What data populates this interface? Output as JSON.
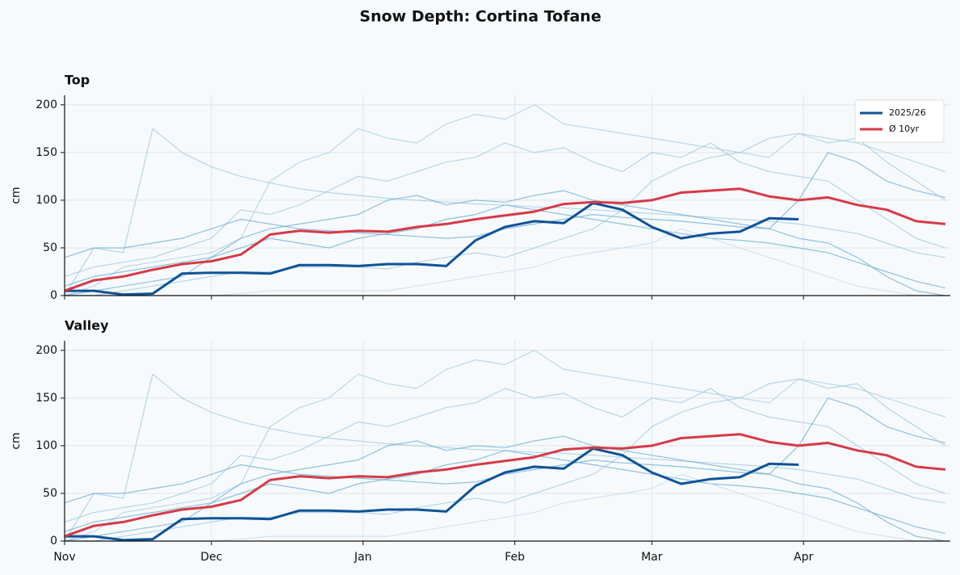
{
  "title": "Snow Depth: Cortina Tofane",
  "chart_data": [
    {
      "type": "line",
      "title": "Top",
      "ylabel": "cm",
      "xlim": [
        0,
        181
      ],
      "ylim": [
        0,
        210
      ],
      "yticks": [
        0,
        50,
        100,
        150,
        200
      ],
      "xticks": [
        0,
        30,
        61,
        92,
        120,
        151
      ],
      "grid": true,
      "legend": "upper right",
      "x": [
        0,
        6,
        12,
        18,
        24,
        30,
        36,
        42,
        48,
        54,
        60,
        66,
        72,
        78,
        84,
        90,
        96,
        102,
        108,
        114,
        120,
        126,
        132,
        138,
        144,
        150,
        156,
        162,
        168,
        174,
        180
      ],
      "series": [
        {
          "color": "#9ecae1",
          "values": [
            0,
            50,
            45,
            175,
            150,
            135,
            125,
            118,
            112,
            108,
            105,
            102,
            100,
            98,
            96,
            95,
            93,
            92,
            90,
            88,
            86,
            84,
            82,
            80,
            78,
            75,
            70,
            65,
            55,
            45,
            40
          ]
        },
        {
          "color": "#a6cee3",
          "values": [
            0,
            10,
            30,
            35,
            40,
            45,
            60,
            120,
            140,
            150,
            175,
            165,
            160,
            180,
            190,
            185,
            200,
            180,
            175,
            170,
            165,
            160,
            155,
            150,
            145,
            170,
            165,
            160,
            150,
            140,
            130
          ]
        },
        {
          "color": "#9ecae1",
          "values": [
            20,
            30,
            35,
            40,
            50,
            60,
            90,
            85,
            95,
            110,
            125,
            120,
            130,
            140,
            145,
            160,
            150,
            155,
            140,
            130,
            150,
            145,
            160,
            140,
            130,
            125,
            120,
            100,
            80,
            60,
            50
          ]
        },
        {
          "color": "#6baed6",
          "values": [
            0,
            5,
            10,
            15,
            20,
            40,
            60,
            70,
            75,
            80,
            85,
            100,
            105,
            95,
            100,
            98,
            105,
            110,
            100,
            95,
            90,
            85,
            80,
            75,
            70,
            100,
            150,
            140,
            120,
            110,
            103
          ]
        },
        {
          "color": "#6baed6",
          "values": [
            10,
            20,
            25,
            30,
            35,
            40,
            50,
            60,
            55,
            50,
            60,
            65,
            70,
            80,
            85,
            95,
            90,
            85,
            80,
            75,
            70,
            65,
            60,
            58,
            55,
            50,
            45,
            35,
            25,
            15,
            8
          ]
        },
        {
          "color": "#9ecae1",
          "values": [
            0,
            0,
            5,
            10,
            15,
            20,
            25,
            25,
            30,
            30,
            30,
            28,
            35,
            40,
            45,
            40,
            50,
            60,
            70,
            90,
            120,
            135,
            145,
            150,
            165,
            170,
            160,
            165,
            140,
            120,
            100
          ]
        },
        {
          "color": "#c6dbef",
          "values": [
            0,
            0,
            0,
            0,
            0,
            0,
            2,
            5,
            5,
            5,
            5,
            5,
            10,
            15,
            20,
            25,
            30,
            40,
            45,
            50,
            55,
            70,
            60,
            50,
            40,
            30,
            20,
            10,
            5,
            0,
            0
          ]
        },
        {
          "color": "#6baed6",
          "values": [
            40,
            50,
            50,
            55,
            60,
            70,
            80,
            75,
            70,
            68,
            66,
            64,
            62,
            60,
            62,
            70,
            75,
            80,
            85,
            82,
            80,
            78,
            75,
            72,
            70,
            60,
            55,
            40,
            20,
            5,
            0
          ]
        },
        {
          "name": "2025/26",
          "color": "#0f5296",
          "values": [
            5,
            5,
            1,
            2,
            23,
            24,
            24,
            23,
            32,
            32,
            31,
            33,
            33,
            31,
            58,
            72,
            78,
            76,
            97,
            90,
            72,
            60,
            65,
            67,
            81,
            80,
            null,
            null,
            null,
            null,
            null
          ]
        },
        {
          "name": "Ø 10yr",
          "color": "#d63a47",
          "values": [
            5,
            16,
            20,
            27,
            33,
            36,
            43,
            64,
            68,
            66,
            68,
            67,
            72,
            75,
            80,
            84,
            88,
            96,
            98,
            97,
            100,
            108,
            110,
            112,
            104,
            100,
            103,
            95,
            90,
            78,
            75
          ]
        }
      ]
    },
    {
      "type": "line",
      "title": "Valley",
      "ylabel": "cm",
      "xlim": [
        0,
        181
      ],
      "ylim": [
        0,
        210
      ],
      "yticks": [
        0,
        50,
        100,
        150,
        200
      ],
      "xticks": [
        {
          "value": 0,
          "label": "Nov"
        },
        {
          "value": 30,
          "label": "Dec"
        },
        {
          "value": 61,
          "label": "Jan"
        },
        {
          "value": 92,
          "label": "Feb"
        },
        {
          "value": 120,
          "label": "Mar"
        },
        {
          "value": 151,
          "label": "Apr"
        }
      ],
      "grid": true,
      "x": [
        0,
        6,
        12,
        18,
        24,
        30,
        36,
        42,
        48,
        54,
        60,
        66,
        72,
        78,
        84,
        90,
        96,
        102,
        108,
        114,
        120,
        126,
        132,
        138,
        144,
        150,
        156,
        162,
        168,
        174,
        180
      ],
      "series": [
        {
          "color": "#9ecae1",
          "values": [
            0,
            50,
            45,
            175,
            150,
            135,
            125,
            118,
            112,
            108,
            105,
            102,
            100,
            98,
            96,
            95,
            93,
            92,
            90,
            88,
            86,
            84,
            82,
            80,
            78,
            75,
            70,
            65,
            55,
            45,
            40
          ]
        },
        {
          "color": "#a6cee3",
          "values": [
            0,
            10,
            30,
            35,
            40,
            45,
            60,
            120,
            140,
            150,
            175,
            165,
            160,
            180,
            190,
            185,
            200,
            180,
            175,
            170,
            165,
            160,
            155,
            150,
            145,
            170,
            165,
            160,
            150,
            140,
            130
          ]
        },
        {
          "color": "#9ecae1",
          "values": [
            20,
            30,
            35,
            40,
            50,
            60,
            90,
            85,
            95,
            110,
            125,
            120,
            130,
            140,
            145,
            160,
            150,
            155,
            140,
            130,
            150,
            145,
            160,
            140,
            130,
            125,
            120,
            100,
            80,
            60,
            50
          ]
        },
        {
          "color": "#6baed6",
          "values": [
            0,
            5,
            10,
            15,
            20,
            40,
            60,
            70,
            75,
            80,
            85,
            100,
            105,
            95,
            100,
            98,
            105,
            110,
            100,
            95,
            90,
            85,
            80,
            75,
            70,
            100,
            150,
            140,
            120,
            110,
            103
          ]
        },
        {
          "color": "#6baed6",
          "values": [
            10,
            20,
            25,
            30,
            35,
            40,
            50,
            60,
            55,
            50,
            60,
            65,
            70,
            80,
            85,
            95,
            90,
            85,
            80,
            75,
            70,
            65,
            60,
            58,
            55,
            50,
            45,
            35,
            25,
            15,
            8
          ]
        },
        {
          "color": "#9ecae1",
          "values": [
            0,
            0,
            5,
            10,
            15,
            20,
            25,
            25,
            30,
            30,
            30,
            28,
            35,
            40,
            45,
            40,
            50,
            60,
            70,
            90,
            120,
            135,
            145,
            150,
            165,
            170,
            160,
            165,
            140,
            120,
            100
          ]
        },
        {
          "color": "#c6dbef",
          "values": [
            0,
            0,
            0,
            0,
            0,
            0,
            2,
            5,
            5,
            5,
            5,
            5,
            10,
            15,
            20,
            25,
            30,
            40,
            45,
            50,
            55,
            70,
            60,
            50,
            40,
            30,
            20,
            10,
            5,
            0,
            0
          ]
        },
        {
          "color": "#6baed6",
          "values": [
            40,
            50,
            50,
            55,
            60,
            70,
            80,
            75,
            70,
            68,
            66,
            64,
            62,
            60,
            62,
            70,
            75,
            80,
            85,
            82,
            80,
            78,
            75,
            72,
            70,
            60,
            55,
            40,
            20,
            5,
            0
          ]
        },
        {
          "name": "2025/26",
          "color": "#0f5296",
          "values": [
            5,
            5,
            1,
            2,
            23,
            24,
            24,
            23,
            32,
            32,
            31,
            33,
            33,
            31,
            58,
            72,
            78,
            76,
            97,
            90,
            72,
            60,
            65,
            67,
            81,
            80,
            null,
            null,
            null,
            null,
            null
          ]
        },
        {
          "name": "Ø 10yr",
          "color": "#d63a47",
          "values": [
            5,
            16,
            20,
            27,
            33,
            36,
            43,
            64,
            68,
            66,
            68,
            67,
            72,
            75,
            80,
            84,
            88,
            96,
            98,
            97,
            100,
            108,
            110,
            112,
            104,
            100,
            103,
            95,
            90,
            78,
            75
          ]
        }
      ]
    }
  ]
}
